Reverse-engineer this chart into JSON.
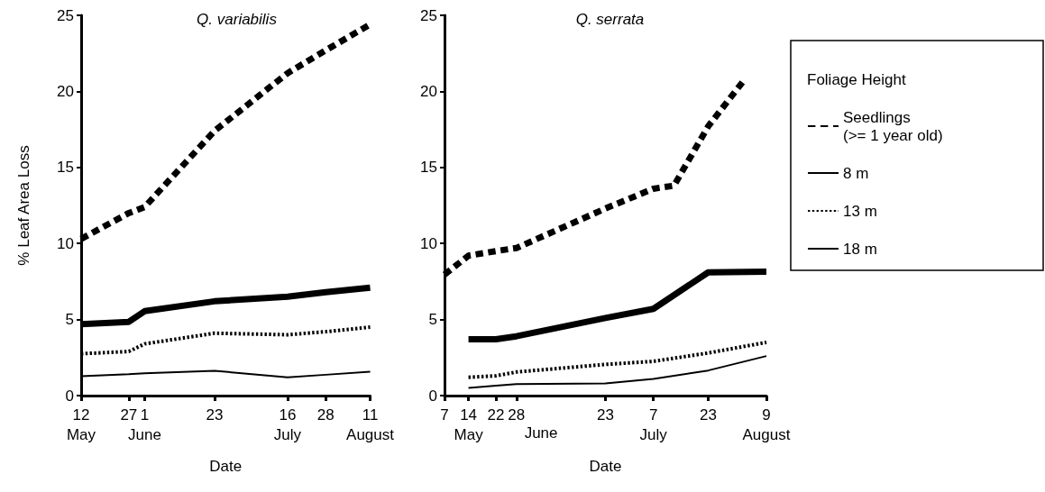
{
  "chart_data": [
    {
      "type": "line",
      "title": "Q. variabilis",
      "xlabel": "Date",
      "ylabel": "% Leaf Area Loss",
      "ylim": [
        0,
        25
      ],
      "yticks": [
        0,
        5,
        10,
        15,
        20,
        25
      ],
      "xlim": [
        "--05-12",
        "--08-11"
      ],
      "xticks": [
        {
          "value": "--05-12",
          "label": "12\nMay"
        },
        {
          "value": "--05-27",
          "label": "27"
        },
        {
          "value": "--06-01",
          "label": "1\nJune"
        },
        {
          "value": "--06-23",
          "label": "23"
        },
        {
          "value": "--07-16",
          "label": "16\nJuly"
        },
        {
          "value": "--07-28",
          "label": "28"
        },
        {
          "value": "--08-11",
          "label": "11\nAugust"
        }
      ],
      "grid": false,
      "legend": false,
      "marker": "none",
      "series": [
        {
          "color": "#000000",
          "line_style": "dashed",
          "x": [
            "--05-12",
            "--05-27",
            "--06-01",
            "--06-23",
            "--07-16",
            "--07-28",
            "--08-11"
          ],
          "values": [
            10.3,
            12.0,
            12.4,
            17.4,
            21.2,
            22.7,
            24.4
          ]
        },
        {
          "color": "#000000",
          "line_style": "solid",
          "x": [
            "--05-12",
            "--05-27",
            "--06-01",
            "--06-23",
            "--07-16",
            "--07-28",
            "--08-11"
          ],
          "values": [
            4.7,
            4.85,
            5.55,
            6.2,
            6.5,
            6.8,
            7.1
          ]
        },
        {
          "color": "#000000",
          "line_style": "dotted",
          "x": [
            "--05-12",
            "--05-27",
            "--06-01",
            "--06-23",
            "--07-16",
            "--07-28",
            "--08-11"
          ],
          "values": [
            2.75,
            2.9,
            3.4,
            4.1,
            4.0,
            4.2,
            4.5
          ]
        },
        {
          "color": "#000000",
          "line_style": "solid",
          "x": [
            "--05-12",
            "--05-27",
            "--06-01",
            "--06-23",
            "--07-16",
            "--07-28",
            "--08-11"
          ],
          "values": [
            1.27,
            1.4,
            1.47,
            1.63,
            1.2,
            1.37,
            1.57
          ]
        }
      ]
    },
    {
      "type": "line",
      "title": "Q. serrata",
      "xlabel": "Date",
      "ylim": [
        0,
        25
      ],
      "yticks": [
        0,
        5,
        10,
        15,
        20,
        25
      ],
      "xlim": [
        "--05-07",
        "--08-09"
      ],
      "xticks": [
        {
          "value": "--05-07",
          "label": "7"
        },
        {
          "value": "--05-14",
          "label": "14\nMay"
        },
        {
          "value": "--05-22",
          "label": "22"
        },
        {
          "value": "--05-28",
          "label": "28"
        },
        {
          "value": "--06-23",
          "label": "23"
        },
        {
          "value": "--07-07",
          "label": "7\nJuly"
        },
        {
          "value": "--07-23",
          "label": "23"
        },
        {
          "value": "--08-09",
          "label": "9\nAugust"
        }
      ],
      "grid": false,
      "legend": "right",
      "legend_title": "Foliage Height",
      "marker": "none",
      "annotations": [
        "June"
      ],
      "series": [
        {
          "name": "Seedlings\n(>= 1 year old)",
          "color": "#000000",
          "line_style": "dashed",
          "x": [
            "--05-07",
            "--05-14",
            "--05-22",
            "--05-28",
            "--06-23",
            "--07-07",
            "--07-13",
            "--07-23",
            "--08-02"
          ],
          "values": [
            7.95,
            9.2,
            9.5,
            9.7,
            12.3,
            13.6,
            13.8,
            17.7,
            20.6
          ]
        },
        {
          "name": "8 m",
          "color": "#000000",
          "line_style": "solid",
          "x": [
            "--05-14",
            "--05-22",
            "--05-28",
            "--06-23",
            "--07-07",
            "--07-23",
            "--08-09"
          ],
          "values": [
            3.7,
            3.7,
            3.9,
            5.1,
            5.7,
            8.1,
            8.15
          ]
        },
        {
          "name": "13 m",
          "color": "#000000",
          "line_style": "dotted",
          "x": [
            "--05-14",
            "--05-22",
            "--05-28",
            "--06-23",
            "--07-07",
            "--07-23",
            "--08-09"
          ],
          "values": [
            1.2,
            1.3,
            1.55,
            2.05,
            2.25,
            2.8,
            3.5
          ]
        },
        {
          "name": "18 m",
          "color": "#000000",
          "line_style": "solid",
          "x": [
            "--05-14",
            "--05-22",
            "--05-28",
            "--06-23",
            "--07-07",
            "--07-23",
            "--08-09"
          ],
          "values": [
            0.5,
            0.65,
            0.75,
            0.8,
            1.1,
            1.65,
            2.6
          ]
        }
      ]
    }
  ]
}
